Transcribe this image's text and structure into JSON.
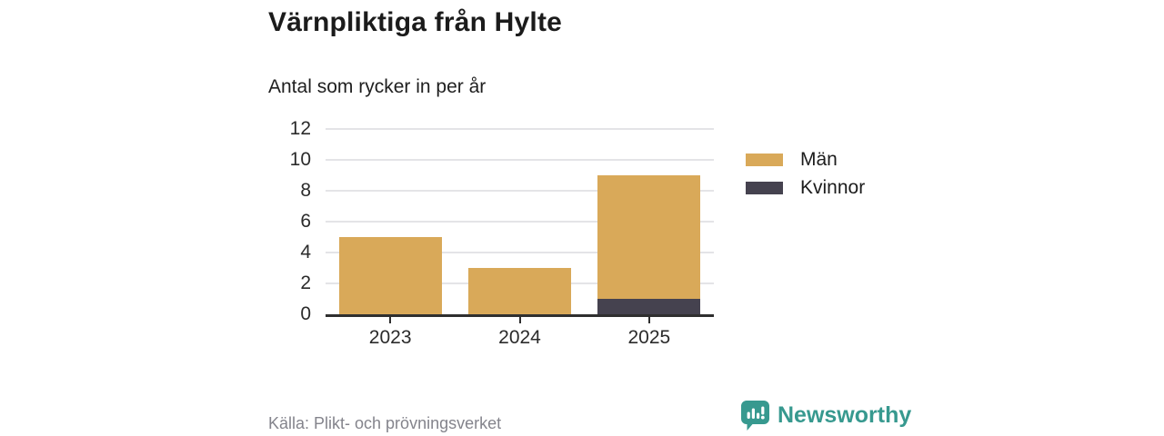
{
  "header": {
    "title": "Värnpliktiga från Hylte",
    "subtitle": "Antal som rycker in per år"
  },
  "chart_data": {
    "type": "bar",
    "stacked": true,
    "title": "Värnpliktiga från Hylte",
    "subtitle": "Antal som rycker in per år",
    "categories": [
      "2023",
      "2024",
      "2025"
    ],
    "series": [
      {
        "name": "Män",
        "color": "#d9a959",
        "values": [
          5,
          3,
          8
        ]
      },
      {
        "name": "Kvinnor",
        "color": "#45424f",
        "values": [
          0,
          0,
          1
        ]
      }
    ],
    "stack_bottom_to_top": [
      "Kvinnor",
      "Män"
    ],
    "totals": [
      5,
      3,
      9
    ],
    "xlabel": "",
    "ylabel": "",
    "ylim": [
      0,
      12
    ],
    "yticks": [
      0,
      2,
      4,
      6,
      8,
      10,
      12
    ],
    "grid": true,
    "legend_position": "right"
  },
  "footer": {
    "source": "Källa: Plikt- och prövningsverket",
    "brand": "Newsworthy"
  },
  "colors": {
    "men": "#d9a959",
    "women": "#45424f",
    "axis": "#2f2f2f",
    "gridline": "#e4e4e7",
    "brand_teal": "#37998f",
    "source_text": "#84848c"
  }
}
